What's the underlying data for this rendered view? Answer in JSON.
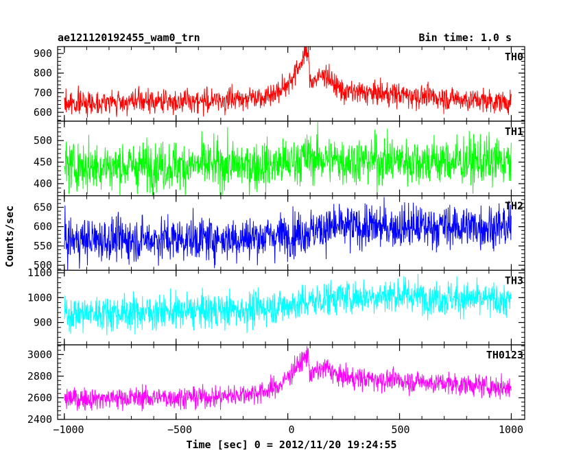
{
  "title": "ae121120192455_wam0_trn",
  "bin_time": "Bin time: 1.0 s",
  "ylabel": "Counts/sec",
  "xlabel": "Time [sec] 0 = 2012/11/20 19:24:55",
  "x_ticks": [
    "−1000",
    "−500",
    "0",
    "500",
    "1000"
  ],
  "chart_data": {
    "type": "line",
    "xlim": [
      -1030,
      1060
    ],
    "x_range": [
      -1000,
      1000
    ],
    "bin_time_s": 1.0,
    "panels": [
      {
        "name": "TH0",
        "color": "#ff0000",
        "ylim": [
          555,
          935
        ],
        "yticks": [
          600,
          700,
          800,
          900
        ],
        "noise": 30,
        "profile": [
          [
            -1000,
            648
          ],
          [
            -300,
            660
          ],
          [
            -100,
            685
          ],
          [
            -30,
            710
          ],
          [
            20,
            780
          ],
          [
            50,
            830
          ],
          [
            75,
            900
          ],
          [
            90,
            905
          ],
          [
            100,
            760
          ],
          [
            130,
            770
          ],
          [
            170,
            800
          ],
          [
            200,
            750
          ],
          [
            250,
            705
          ],
          [
            500,
            690
          ],
          [
            800,
            665
          ],
          [
            1000,
            650
          ]
        ]
      },
      {
        "name": "TH1",
        "color": "#00ff00",
        "ylim": [
          372,
          545
        ],
        "yticks": [
          400,
          450,
          500
        ],
        "noise": 28,
        "profile": [
          [
            -1000,
            440
          ],
          [
            -100,
            443
          ],
          [
            0,
            447
          ],
          [
            80,
            460
          ],
          [
            200,
            455
          ],
          [
            600,
            452
          ],
          [
            1000,
            450
          ]
        ]
      },
      {
        "name": "TH2",
        "color": "#0000ff",
        "ylim": [
          487,
          680
        ],
        "yticks": [
          500,
          550,
          600,
          650
        ],
        "noise": 28,
        "profile": [
          [
            -1000,
            565
          ],
          [
            -200,
            570
          ],
          [
            0,
            580
          ],
          [
            200,
            598
          ],
          [
            500,
            600
          ],
          [
            1000,
            600
          ]
        ]
      },
      {
        "name": "TH3",
        "color": "#00ffff",
        "ylim": [
          810,
          1110
        ],
        "yticks": [
          900,
          1000,
          1100
        ],
        "noise": 35,
        "profile": [
          [
            -1000,
            935
          ],
          [
            -200,
            950
          ],
          [
            0,
            970
          ],
          [
            200,
            1000
          ],
          [
            500,
            1010
          ],
          [
            1000,
            985
          ]
        ]
      },
      {
        "name": "TH0123",
        "color": "#ff00ff",
        "ylim": [
          2400,
          3090
        ],
        "yticks": [
          2400,
          2600,
          2800,
          3000
        ],
        "noise": 50,
        "profile": [
          [
            -1000,
            2590
          ],
          [
            -300,
            2610
          ],
          [
            -100,
            2660
          ],
          [
            -30,
            2720
          ],
          [
            20,
            2850
          ],
          [
            60,
            2930
          ],
          [
            90,
            3000
          ],
          [
            100,
            2820
          ],
          [
            140,
            2850
          ],
          [
            180,
            2880
          ],
          [
            220,
            2800
          ],
          [
            300,
            2780
          ],
          [
            500,
            2760
          ],
          [
            800,
            2720
          ],
          [
            1000,
            2690
          ]
        ]
      }
    ]
  }
}
